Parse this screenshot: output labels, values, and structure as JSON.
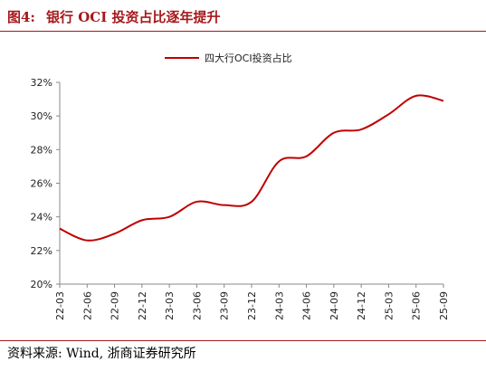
{
  "header": {
    "figure_label": "图4:",
    "title": "银行 OCI 投资占比逐年提升"
  },
  "source_text": "资料来源: Wind, 浙商证券研究所",
  "colors": {
    "accent": "#a6191c",
    "line": "#c00000",
    "axis": "#888888"
  },
  "chart_data": {
    "type": "line",
    "title": "",
    "xlabel": "",
    "ylabel": "",
    "ylim": [
      20,
      32
    ],
    "yticks": [
      20,
      22,
      24,
      26,
      28,
      30,
      32
    ],
    "y_tick_suffix": "%",
    "grid": false,
    "legend_position": "top-center",
    "categories": [
      "22-03",
      "22-06",
      "22-09",
      "22-12",
      "23-03",
      "23-06",
      "23-09",
      "23-12",
      "24-03",
      "24-06",
      "24-09",
      "24-12",
      "25-03",
      "25-06",
      "25-09"
    ],
    "series": [
      {
        "name": "四大行OCI投资占比",
        "values": [
          23.3,
          22.6,
          23.0,
          23.8,
          24.0,
          24.9,
          24.7,
          24.9,
          27.3,
          27.6,
          29.0,
          29.2,
          30.1,
          31.2,
          30.9
        ]
      }
    ]
  }
}
